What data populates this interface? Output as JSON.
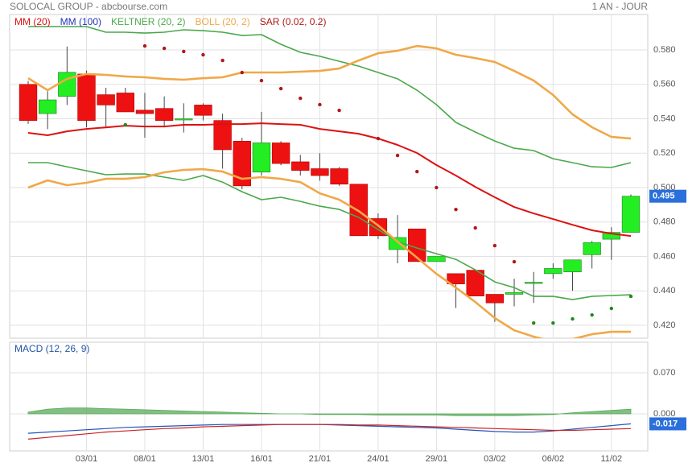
{
  "header": {
    "title": "SOLOCAL GROUP - abcbourse.com",
    "period": "1 AN - JOUR"
  },
  "chart_data": [
    {
      "type": "candlestick",
      "categories": [
        null,
        null,
        null,
        "03/01",
        null,
        null,
        "08/01",
        null,
        null,
        "13/01",
        null,
        null,
        "16/01",
        null,
        null,
        "21/01",
        null,
        null,
        "24/01",
        null,
        null,
        "29/01",
        null,
        null,
        "03/02",
        null,
        null,
        "06/02",
        null,
        null,
        "11/02",
        null
      ],
      "open": [
        0.56,
        0.543,
        0.553,
        0.566,
        0.554,
        0.555,
        0.545,
        0.546,
        0.54,
        0.548,
        0.539,
        0.527,
        0.509,
        0.526,
        0.515,
        0.511,
        0.511,
        0.502,
        0.482,
        0.464,
        0.476,
        0.457,
        0.45,
        0.452,
        0.438,
        0.438,
        0.445,
        0.45,
        0.451,
        0.461,
        0.47,
        0.474
      ],
      "high": [
        0.562,
        0.556,
        0.582,
        0.568,
        0.558,
        0.558,
        0.555,
        0.553,
        0.549,
        0.549,
        0.543,
        0.529,
        0.544,
        0.527,
        0.519,
        0.52,
        0.512,
        0.502,
        0.485,
        0.484,
        0.476,
        0.46,
        0.45,
        0.452,
        0.438,
        0.447,
        0.451,
        0.456,
        0.458,
        0.469,
        0.477,
        0.496
      ],
      "low": [
        0.537,
        0.534,
        0.548,
        0.535,
        0.535,
        0.544,
        0.529,
        0.535,
        0.532,
        0.539,
        0.511,
        0.499,
        0.507,
        0.513,
        0.507,
        0.504,
        0.501,
        0.472,
        0.47,
        0.456,
        0.457,
        0.457,
        0.43,
        0.437,
        0.422,
        0.431,
        0.433,
        0.447,
        0.44,
        0.453,
        0.458,
        0.474
      ],
      "close": [
        0.539,
        0.551,
        0.567,
        0.539,
        0.548,
        0.544,
        0.543,
        0.539,
        0.54,
        0.542,
        0.522,
        0.501,
        0.526,
        0.514,
        0.51,
        0.507,
        0.502,
        0.472,
        0.472,
        0.471,
        0.457,
        0.46,
        0.444,
        0.437,
        0.433,
        0.439,
        0.445,
        0.453,
        0.458,
        0.468,
        0.474,
        0.495
      ],
      "up_color": "#22ee22",
      "down_color": "#ee1111",
      "ylim": [
        0.4125,
        0.6006
      ],
      "yticks": [
        {
          "value": 0.42,
          "label": "0.420"
        },
        {
          "value": 0.44,
          "label": "0.440"
        },
        {
          "value": 0.46,
          "label": "0.460"
        },
        {
          "value": 0.48,
          "label": "0.480"
        },
        {
          "value": 0.5,
          "label": "0.500"
        },
        {
          "value": 0.52,
          "label": "0.520"
        },
        {
          "value": 0.54,
          "label": "0.540"
        },
        {
          "value": 0.56,
          "label": "0.560"
        },
        {
          "value": 0.58,
          "label": "0.580"
        }
      ],
      "grid": true,
      "last_price": {
        "value": 0.495,
        "label": "0.495",
        "color": "#2a6fdb"
      },
      "series": [
        {
          "name": "MM (20)",
          "color": "#dd1111",
          "values": [
            0.5318,
            0.5304,
            0.5327,
            0.5341,
            0.535,
            0.536,
            0.5355,
            0.5355,
            0.5365,
            0.5365,
            0.5369,
            0.5369,
            0.5374,
            0.5369,
            0.5365,
            0.5341,
            0.5327,
            0.5313,
            0.5285,
            0.5248,
            0.5201,
            0.5131,
            0.507,
            0.5004,
            0.4944,
            0.4887,
            0.485,
            0.4817,
            0.4784,
            0.4752,
            0.4733,
            0.4719
          ]
        },
        {
          "name": "MM (100)",
          "color": "#2233bb",
          "values": [
            null,
            null,
            null,
            null,
            null,
            null,
            null,
            null,
            null,
            null,
            null,
            null,
            null,
            null,
            null,
            null,
            null,
            null,
            null,
            null,
            null,
            null,
            null,
            null,
            null,
            null,
            null,
            null,
            null,
            null,
            null,
            null
          ]
        },
        {
          "name": "KELTNER (20, 2)",
          "color": "#4aa84a",
          "upper": [
            0.5936,
            0.5936,
            0.5936,
            0.5936,
            0.5903,
            0.5903,
            0.5898,
            0.5903,
            0.5917,
            0.5912,
            0.5903,
            0.5884,
            0.5889,
            0.5833,
            0.5786,
            0.5763,
            0.5734,
            0.5706,
            0.5669,
            0.5632,
            0.5566,
            0.5482,
            0.5379,
            0.5323,
            0.5271,
            0.5229,
            0.5215,
            0.5168,
            0.5145,
            0.5121,
            0.5117,
            0.5145
          ],
          "lower": [
            0.5145,
            0.5145,
            0.5121,
            0.5098,
            0.5075,
            0.5079,
            0.5079,
            0.5061,
            0.5042,
            0.507,
            0.5032,
            0.4976,
            0.493,
            0.4944,
            0.492,
            0.4892,
            0.4873,
            0.4827,
            0.4756,
            0.4686,
            0.4649,
            0.4616,
            0.4583,
            0.4522,
            0.4452,
            0.4419,
            0.4368,
            0.4368,
            0.4349,
            0.4368,
            0.4373,
            0.4377
          ]
        },
        {
          "name": "BOLL (20, 2)",
          "color": "#f0a848",
          "upper": [
            0.5636,
            0.5566,
            0.5632,
            0.566,
            0.5655,
            0.5646,
            0.5641,
            0.5632,
            0.5627,
            0.5636,
            0.5641,
            0.5669,
            0.5669,
            0.5669,
            0.5674,
            0.5678,
            0.5692,
            0.5739,
            0.5781,
            0.5795,
            0.5823,
            0.5809,
            0.5772,
            0.5753,
            0.573,
            0.5678,
            0.5622,
            0.5538,
            0.5426,
            0.5351,
            0.5295,
            0.5285
          ],
          "lower": [
            0.5,
            0.5042,
            0.5014,
            0.5028,
            0.5051,
            0.5051,
            0.5061,
            0.5089,
            0.5103,
            0.5107,
            0.5093,
            0.5051,
            0.5061,
            0.5051,
            0.5032,
            0.4967,
            0.493,
            0.4864,
            0.478,
            0.4686,
            0.4593,
            0.4499,
            0.4419,
            0.4335,
            0.4242,
            0.4171,
            0.4134,
            0.4106,
            0.412,
            0.4148,
            0.4162,
            0.4162
          ]
        },
        {
          "name": "SAR (0.02, 0.2)",
          "color": "#b01818",
          "below_color": "#1f8a1f",
          "style": "dots",
          "values": [
            null,
            null,
            null,
            null,
            null,
            0.5365,
            0.5823,
            0.5809,
            0.5791,
            0.5772,
            0.5739,
            0.5669,
            0.5622,
            0.5575,
            0.5519,
            0.5482,
            0.5449,
            null,
            0.5285,
            0.5187,
            0.5093,
            0.5,
            0.4873,
            0.4766,
            0.4663,
            0.4569,
            0.4213,
            0.4213,
            0.4237,
            0.426,
            0.4298,
            0.4368
          ]
        }
      ]
    },
    {
      "type": "macd",
      "title": "MACD (12, 26, 9)",
      "title_color": "#2255aa",
      "ylim": [
        -0.063,
        0.122
      ],
      "yticks": [
        {
          "value": 0,
          "label": "0.000"
        },
        {
          "value": 0.07,
          "label": "0.070"
        }
      ],
      "grid": true,
      "histogram": {
        "color": "#5aaa5a",
        "values": [
          0.003,
          0.008,
          0.01,
          0.01,
          0.009,
          0.008,
          0.007,
          0.006,
          0.005,
          0.004,
          0.003,
          0.002,
          0.001,
          0.0,
          0.0,
          -0.001,
          -0.001,
          -0.001,
          -0.002,
          -0.002,
          -0.002,
          -0.002,
          -0.003,
          -0.003,
          -0.003,
          -0.003,
          -0.002,
          -0.001,
          0.002,
          0.004,
          0.006,
          0.008
        ]
      },
      "series": [
        {
          "color": "#2255bb",
          "values": [
            -0.033,
            -0.031,
            -0.029,
            -0.027,
            -0.025,
            -0.023,
            -0.022,
            -0.021,
            -0.02,
            -0.019,
            -0.018,
            -0.018,
            -0.018,
            -0.018,
            -0.018,
            -0.018,
            -0.019,
            -0.02,
            -0.021,
            -0.022,
            -0.023,
            -0.024,
            -0.026,
            -0.028,
            -0.03,
            -0.031,
            -0.031,
            -0.029,
            -0.026,
            -0.023,
            -0.02,
            -0.017
          ]
        },
        {
          "color": "#cc2222",
          "values": [
            -0.043,
            -0.04,
            -0.037,
            -0.034,
            -0.031,
            -0.029,
            -0.027,
            -0.025,
            -0.024,
            -0.022,
            -0.021,
            -0.02,
            -0.019,
            -0.018,
            -0.018,
            -0.018,
            -0.018,
            -0.019,
            -0.019,
            -0.02,
            -0.021,
            -0.022,
            -0.023,
            -0.024,
            -0.025,
            -0.026,
            -0.027,
            -0.028,
            -0.028,
            -0.027,
            -0.026,
            -0.025
          ]
        }
      ],
      "last_value": {
        "value": -0.017,
        "label": "-0.017",
        "color": "#2a6fdb"
      }
    }
  ]
}
